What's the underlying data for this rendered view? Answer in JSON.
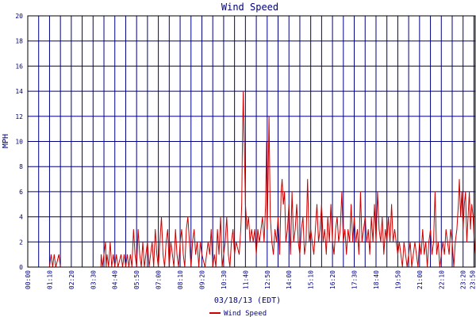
{
  "chart_data": {
    "type": "line",
    "title": "Wind Speed",
    "xlabel": "03/18/13 (EDT)",
    "ylabel": "MPH",
    "ylim": [
      0,
      20
    ],
    "y_ticks": [
      "0",
      "2",
      "4",
      "6",
      "8",
      "10",
      "12",
      "14",
      "16",
      "18",
      "20"
    ],
    "x_ticks": [
      "00:00",
      "01:10",
      "02:20",
      "03:30",
      "04:40",
      "05:50",
      "07:00",
      "08:10",
      "09:20",
      "10:30",
      "11:40",
      "12:50",
      "14:00",
      "15:10",
      "16:20",
      "17:30",
      "18:40",
      "19:50",
      "21:00",
      "22:10",
      "23:20",
      "23:50"
    ],
    "grid": true,
    "legend_position": "bottom",
    "colors": {
      "series": "#cc0000",
      "grid": "#000080",
      "frame": "#000000",
      "text": "#000080"
    },
    "series": [
      {
        "name": "Wind Speed",
        "x_unit": "minutes",
        "points": [
          [
            0,
            0
          ],
          [
            70,
            0
          ],
          [
            75,
            1
          ],
          [
            80,
            0
          ],
          [
            85,
            1
          ],
          [
            90,
            0
          ],
          [
            100,
            1
          ],
          [
            105,
            0
          ],
          [
            110,
            0
          ],
          [
            140,
            0
          ],
          [
            200,
            0
          ],
          [
            235,
            0
          ],
          [
            236,
            1
          ],
          [
            240,
            0
          ],
          [
            245,
            1
          ],
          [
            250,
            2
          ],
          [
            252,
            0
          ],
          [
            255,
            1
          ],
          [
            260,
            0
          ],
          [
            265,
            2
          ],
          [
            270,
            0
          ],
          [
            275,
            1
          ],
          [
            280,
            0
          ],
          [
            285,
            1
          ],
          [
            290,
            0
          ],
          [
            300,
            1
          ],
          [
            305,
            0
          ],
          [
            310,
            1
          ],
          [
            315,
            0
          ],
          [
            320,
            1
          ],
          [
            325,
            0
          ],
          [
            330,
            1
          ],
          [
            335,
            0
          ],
          [
            340,
            3
          ],
          [
            345,
            1
          ],
          [
            350,
            0
          ],
          [
            355,
            3
          ],
          [
            360,
            1
          ],
          [
            365,
            0
          ],
          [
            370,
            2
          ],
          [
            375,
            0
          ],
          [
            380,
            1
          ],
          [
            385,
            2
          ],
          [
            390,
            0
          ],
          [
            395,
            1
          ],
          [
            400,
            2
          ],
          [
            405,
            0
          ],
          [
            410,
            3
          ],
          [
            415,
            1
          ],
          [
            420,
            0
          ],
          [
            425,
            2
          ],
          [
            430,
            4
          ],
          [
            435,
            1
          ],
          [
            440,
            0
          ],
          [
            445,
            2
          ],
          [
            450,
            3
          ],
          [
            455,
            0
          ],
          [
            460,
            2
          ],
          [
            465,
            1
          ],
          [
            470,
            0
          ],
          [
            475,
            3
          ],
          [
            480,
            1
          ],
          [
            485,
            0
          ],
          [
            490,
            2
          ],
          [
            495,
            3
          ],
          [
            500,
            1
          ],
          [
            505,
            0
          ],
          [
            510,
            3
          ],
          [
            515,
            4
          ],
          [
            520,
            2
          ],
          [
            525,
            0
          ],
          [
            530,
            2
          ],
          [
            535,
            3
          ],
          [
            540,
            1
          ],
          [
            545,
            2
          ],
          [
            550,
            0
          ],
          [
            555,
            2
          ],
          [
            560,
            1
          ],
          [
            570,
            0
          ],
          [
            575,
            1
          ],
          [
            580,
            2
          ],
          [
            585,
            1
          ],
          [
            590,
            3
          ],
          [
            595,
            0
          ],
          [
            600,
            1
          ],
          [
            605,
            0
          ],
          [
            610,
            3
          ],
          [
            615,
            1
          ],
          [
            620,
            4
          ],
          [
            625,
            0
          ],
          [
            630,
            1
          ],
          [
            635,
            2
          ],
          [
            640,
            4
          ],
          [
            645,
            1
          ],
          [
            650,
            0
          ],
          [
            655,
            2
          ],
          [
            660,
            3
          ],
          [
            665,
            1
          ],
          [
            670,
            2
          ],
          [
            680,
            1
          ],
          [
            685,
            3
          ],
          [
            688,
            5
          ],
          [
            690,
            9
          ],
          [
            693,
            14
          ],
          [
            696,
            10
          ],
          [
            700,
            5
          ],
          [
            705,
            3
          ],
          [
            710,
            4
          ],
          [
            715,
            2
          ],
          [
            720,
            3
          ],
          [
            725,
            2
          ],
          [
            730,
            3
          ],
          [
            735,
            1
          ],
          [
            740,
            3
          ],
          [
            745,
            2
          ],
          [
            750,
            3
          ],
          [
            755,
            4
          ],
          [
            760,
            2
          ],
          [
            765,
            5
          ],
          [
            768,
            10
          ],
          [
            770,
            3
          ],
          [
            773,
            7
          ],
          [
            776,
            12
          ],
          [
            780,
            4
          ],
          [
            785,
            2
          ],
          [
            790,
            1
          ],
          [
            795,
            3
          ],
          [
            800,
            2
          ],
          [
            805,
            4
          ],
          [
            810,
            1
          ],
          [
            815,
            6
          ],
          [
            818,
            7
          ],
          [
            822,
            5
          ],
          [
            826,
            6
          ],
          [
            830,
            2
          ],
          [
            835,
            3
          ],
          [
            840,
            5
          ],
          [
            845,
            1
          ],
          [
            850,
            6
          ],
          [
            855,
            2
          ],
          [
            860,
            3
          ],
          [
            865,
            5
          ],
          [
            870,
            2
          ],
          [
            875,
            1
          ],
          [
            880,
            3
          ],
          [
            885,
            4
          ],
          [
            890,
            1
          ],
          [
            895,
            2
          ],
          [
            900,
            7
          ],
          [
            905,
            2
          ],
          [
            910,
            3
          ],
          [
            915,
            2
          ],
          [
            920,
            1
          ],
          [
            925,
            3
          ],
          [
            930,
            5
          ],
          [
            935,
            2
          ],
          [
            940,
            3
          ],
          [
            945,
            5
          ],
          [
            950,
            2
          ],
          [
            955,
            3
          ],
          [
            960,
            1
          ],
          [
            965,
            4
          ],
          [
            970,
            2
          ],
          [
            975,
            5
          ],
          [
            980,
            2
          ],
          [
            985,
            1
          ],
          [
            990,
            3
          ],
          [
            995,
            4
          ],
          [
            1000,
            2
          ],
          [
            1005,
            3
          ],
          [
            1010,
            6
          ],
          [
            1015,
            2
          ],
          [
            1020,
            3
          ],
          [
            1025,
            1
          ],
          [
            1030,
            3
          ],
          [
            1035,
            2
          ],
          [
            1040,
            5
          ],
          [
            1045,
            2
          ],
          [
            1050,
            4
          ],
          [
            1055,
            2
          ],
          [
            1060,
            3
          ],
          [
            1065,
            1
          ],
          [
            1070,
            6
          ],
          [
            1075,
            2
          ],
          [
            1080,
            3
          ],
          [
            1085,
            4
          ],
          [
            1090,
            2
          ],
          [
            1095,
            3
          ],
          [
            1100,
            1
          ],
          [
            1105,
            4
          ],
          [
            1110,
            2
          ],
          [
            1115,
            5
          ],
          [
            1120,
            2
          ],
          [
            1125,
            6
          ],
          [
            1130,
            3
          ],
          [
            1135,
            2
          ],
          [
            1140,
            4
          ],
          [
            1145,
            1
          ],
          [
            1150,
            3
          ],
          [
            1155,
            2
          ],
          [
            1160,
            4
          ],
          [
            1165,
            2
          ],
          [
            1170,
            5
          ],
          [
            1175,
            2
          ],
          [
            1180,
            3
          ],
          [
            1185,
            2
          ],
          [
            1190,
            1
          ],
          [
            1195,
            2
          ],
          [
            1200,
            1
          ],
          [
            1205,
            0
          ],
          [
            1210,
            2
          ],
          [
            1215,
            1
          ],
          [
            1220,
            0
          ],
          [
            1225,
            1
          ],
          [
            1230,
            2
          ],
          [
            1235,
            0
          ],
          [
            1240,
            1
          ],
          [
            1245,
            2
          ],
          [
            1250,
            1
          ],
          [
            1255,
            0
          ],
          [
            1260,
            2
          ],
          [
            1265,
            1
          ],
          [
            1270,
            3
          ],
          [
            1275,
            1
          ],
          [
            1280,
            2
          ],
          [
            1285,
            0
          ],
          [
            1290,
            2
          ],
          [
            1295,
            3
          ],
          [
            1300,
            1
          ],
          [
            1305,
            2
          ],
          [
            1310,
            6
          ],
          [
            1315,
            1
          ],
          [
            1320,
            2
          ],
          [
            1325,
            0
          ],
          [
            1330,
            1
          ],
          [
            1335,
            2
          ],
          [
            1340,
            1
          ],
          [
            1345,
            3
          ],
          [
            1350,
            2
          ],
          [
            1355,
            1
          ],
          [
            1360,
            3
          ],
          [
            1365,
            2
          ],
          [
            1370,
            0
          ],
          [
            1375,
            2
          ],
          [
            1380,
            3
          ],
          [
            1385,
            5
          ],
          [
            1388,
            7
          ],
          [
            1392,
            4
          ],
          [
            1396,
            6
          ],
          [
            1400,
            3
          ],
          [
            1404,
            5
          ],
          [
            1408,
            6
          ],
          [
            1412,
            2
          ],
          [
            1416,
            4
          ],
          [
            1420,
            6
          ],
          [
            1424,
            3
          ],
          [
            1428,
            5
          ],
          [
            1432,
            4
          ],
          [
            1436,
            2
          ],
          [
            1439,
            1
          ]
        ]
      }
    ]
  }
}
